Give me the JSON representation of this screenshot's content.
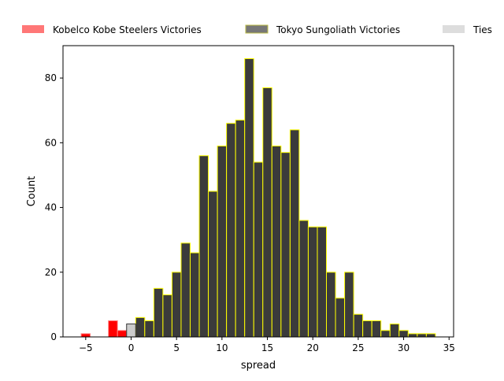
{
  "chart_data": {
    "type": "bar",
    "xlabel": "spread",
    "ylabel": "Count",
    "xlim": [
      -7.5,
      35.5
    ],
    "ylim": [
      0,
      90
    ],
    "x_ticks": [
      -5,
      0,
      5,
      10,
      15,
      20,
      25,
      30,
      35
    ],
    "y_ticks": [
      0,
      20,
      40,
      60,
      80
    ],
    "bin_width": 1,
    "legend_position": "top, outside plot area",
    "grid": false,
    "series": [
      {
        "name": "Kobelco Kobe Steelers Victories",
        "color": "#ff0000",
        "legend_color": "#ff7777",
        "edge_color": "#ff8888",
        "bins": [
          {
            "x": -5,
            "count": 1
          },
          {
            "x": -2,
            "count": 5
          },
          {
            "x": -1,
            "count": 2
          }
        ]
      },
      {
        "name": "Tokyo Sungoliath Victories",
        "color": "#3b3b3b",
        "legend_color": "#777777",
        "edge_color": "#ffff00",
        "bins": [
          {
            "x": 1,
            "count": 6
          },
          {
            "x": 2,
            "count": 5
          },
          {
            "x": 3,
            "count": 15
          },
          {
            "x": 4,
            "count": 13
          },
          {
            "x": 5,
            "count": 20
          },
          {
            "x": 6,
            "count": 29
          },
          {
            "x": 7,
            "count": 26
          },
          {
            "x": 8,
            "count": 56
          },
          {
            "x": 9,
            "count": 45
          },
          {
            "x": 10,
            "count": 59
          },
          {
            "x": 11,
            "count": 66
          },
          {
            "x": 12,
            "count": 67
          },
          {
            "x": 13,
            "count": 86
          },
          {
            "x": 14,
            "count": 54
          },
          {
            "x": 15,
            "count": 77
          },
          {
            "x": 16,
            "count": 59
          },
          {
            "x": 17,
            "count": 57
          },
          {
            "x": 18,
            "count": 64
          },
          {
            "x": 19,
            "count": 36
          },
          {
            "x": 20,
            "count": 34
          },
          {
            "x": 21,
            "count": 34
          },
          {
            "x": 22,
            "count": 20
          },
          {
            "x": 23,
            "count": 12
          },
          {
            "x": 24,
            "count": 20
          },
          {
            "x": 25,
            "count": 7
          },
          {
            "x": 26,
            "count": 5
          },
          {
            "x": 27,
            "count": 5
          },
          {
            "x": 28,
            "count": 2
          },
          {
            "x": 29,
            "count": 4
          },
          {
            "x": 30,
            "count": 2
          },
          {
            "x": 31,
            "count": 1
          },
          {
            "x": 32,
            "count": 1
          },
          {
            "x": 33,
            "count": 1
          }
        ]
      },
      {
        "name": "Ties",
        "color": "#cccccc",
        "legend_color": "#dddddd",
        "edge_color": "#333333",
        "bins": [
          {
            "x": 0,
            "count": 4
          }
        ]
      }
    ]
  }
}
